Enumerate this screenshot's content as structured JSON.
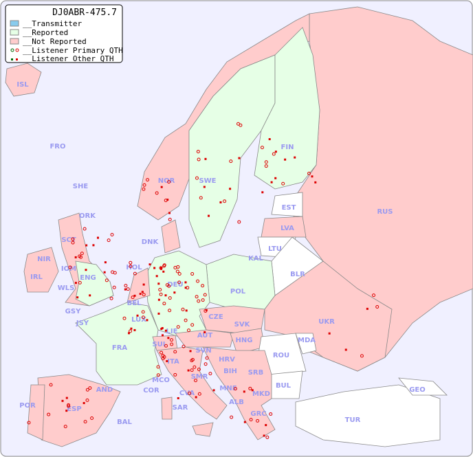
{
  "title": "DJ0ABR-475.7",
  "legend": [
    {
      "label": "__Transmitter",
      "color": "#88ccee"
    },
    {
      "label": "__Reported",
      "color": "#e6ffe6"
    },
    {
      "label": "__Not Reported",
      "color": "#ffcccc"
    },
    {
      "label": "__Listener Primary QTH",
      "symbol": "open-circle"
    },
    {
      "label": "__Listener Other QTH",
      "symbol": "filled-square"
    }
  ],
  "colors": {
    "background": "#f0f0ff",
    "reported": "#e6ffe6",
    "not_reported": "#ffcccc",
    "unknown": "#ffffff",
    "label": "#9a9af0",
    "marker_other": "#dd0000",
    "marker_primary_reported": "#006600"
  },
  "countries": [
    {
      "code": "ISL",
      "status": "not_reported"
    },
    {
      "code": "FRO",
      "status": "none"
    },
    {
      "code": "SHE",
      "status": "none"
    },
    {
      "code": "ORK",
      "status": "none"
    },
    {
      "code": "NOR",
      "status": "not_reported"
    },
    {
      "code": "SWE",
      "status": "reported"
    },
    {
      "code": "FIN",
      "status": "reported"
    },
    {
      "code": "RUS",
      "status": "not_reported"
    },
    {
      "code": "EST",
      "status": "none"
    },
    {
      "code": "LVA",
      "status": "not_reported"
    },
    {
      "code": "LTU",
      "status": "none"
    },
    {
      "code": "KAL",
      "status": "none"
    },
    {
      "code": "BLR",
      "status": "none"
    },
    {
      "code": "POL",
      "status": "reported"
    },
    {
      "code": "DNK",
      "status": "not_reported"
    },
    {
      "code": "HOL",
      "status": "not_reported"
    },
    {
      "code": "DEU",
      "status": "reported"
    },
    {
      "code": "BEL",
      "status": "not_reported"
    },
    {
      "code": "LUX",
      "status": "not_reported"
    },
    {
      "code": "CZE",
      "status": "not_reported"
    },
    {
      "code": "SVK",
      "status": "not_reported"
    },
    {
      "code": "UKR",
      "status": "not_reported"
    },
    {
      "code": "HNG",
      "status": "not_reported"
    },
    {
      "code": "AUT",
      "status": "not_reported"
    },
    {
      "code": "SUI",
      "status": "not_reported"
    },
    {
      "code": "LIE",
      "status": "not_reported"
    },
    {
      "code": "FRA",
      "status": "reported"
    },
    {
      "code": "SVN",
      "status": "not_reported"
    },
    {
      "code": "HRV",
      "status": "not_reported"
    },
    {
      "code": "BIH",
      "status": "not_reported"
    },
    {
      "code": "SRB",
      "status": "not_reported"
    },
    {
      "code": "ROU",
      "status": "none"
    },
    {
      "code": "MDA",
      "status": "none"
    },
    {
      "code": "BUL",
      "status": "none"
    },
    {
      "code": "MNE",
      "status": "not_reported"
    },
    {
      "code": "ALB",
      "status": "not_reported"
    },
    {
      "code": "MKD",
      "status": "none"
    },
    {
      "code": "GRC",
      "status": "not_reported"
    },
    {
      "code": "TUR",
      "status": "none"
    },
    {
      "code": "GEO",
      "status": "none"
    },
    {
      "code": "ITA",
      "status": "not_reported"
    },
    {
      "code": "SMR",
      "status": "not_reported"
    },
    {
      "code": "MCO",
      "status": "not_reported"
    },
    {
      "code": "COR",
      "status": "not_reported"
    },
    {
      "code": "CVA",
      "status": "not_reported"
    },
    {
      "code": "SAR",
      "status": "not_reported"
    },
    {
      "code": "AND",
      "status": "not_reported"
    },
    {
      "code": "ESP",
      "status": "not_reported"
    },
    {
      "code": "POR",
      "status": "not_reported"
    },
    {
      "code": "BAL",
      "status": "not_reported"
    },
    {
      "code": "IRL",
      "status": "not_reported"
    },
    {
      "code": "NIR",
      "status": "not_reported"
    },
    {
      "code": "SCT",
      "status": "not_reported"
    },
    {
      "code": "ENG",
      "status": "reported"
    },
    {
      "code": "WLS",
      "status": "not_reported"
    },
    {
      "code": "IOM",
      "status": "not_reported"
    },
    {
      "code": "GSY",
      "status": "not_reported"
    },
    {
      "code": "JSY",
      "status": "not_reported"
    }
  ]
}
